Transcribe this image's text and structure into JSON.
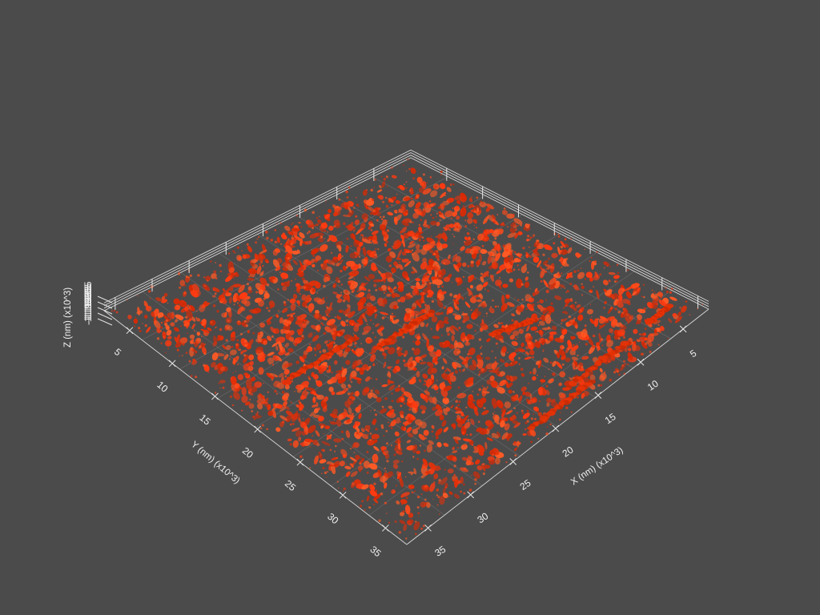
{
  "viewer": {
    "background_color": "#4b4b4b",
    "render_color": "#ff3a10",
    "axes": {
      "x": {
        "title": "X (nm) (x10^3)",
        "ticks": [
          "5",
          "10",
          "15",
          "20",
          "25",
          "30",
          "35"
        ]
      },
      "y": {
        "title": "Y (nm) (x10^3)",
        "ticks": [
          "5",
          "10",
          "15",
          "20",
          "25",
          "30",
          "35"
        ]
      },
      "z": {
        "title": "Z (nm) (x10^3)",
        "tick_text": "-1.19935"
      }
    }
  }
}
